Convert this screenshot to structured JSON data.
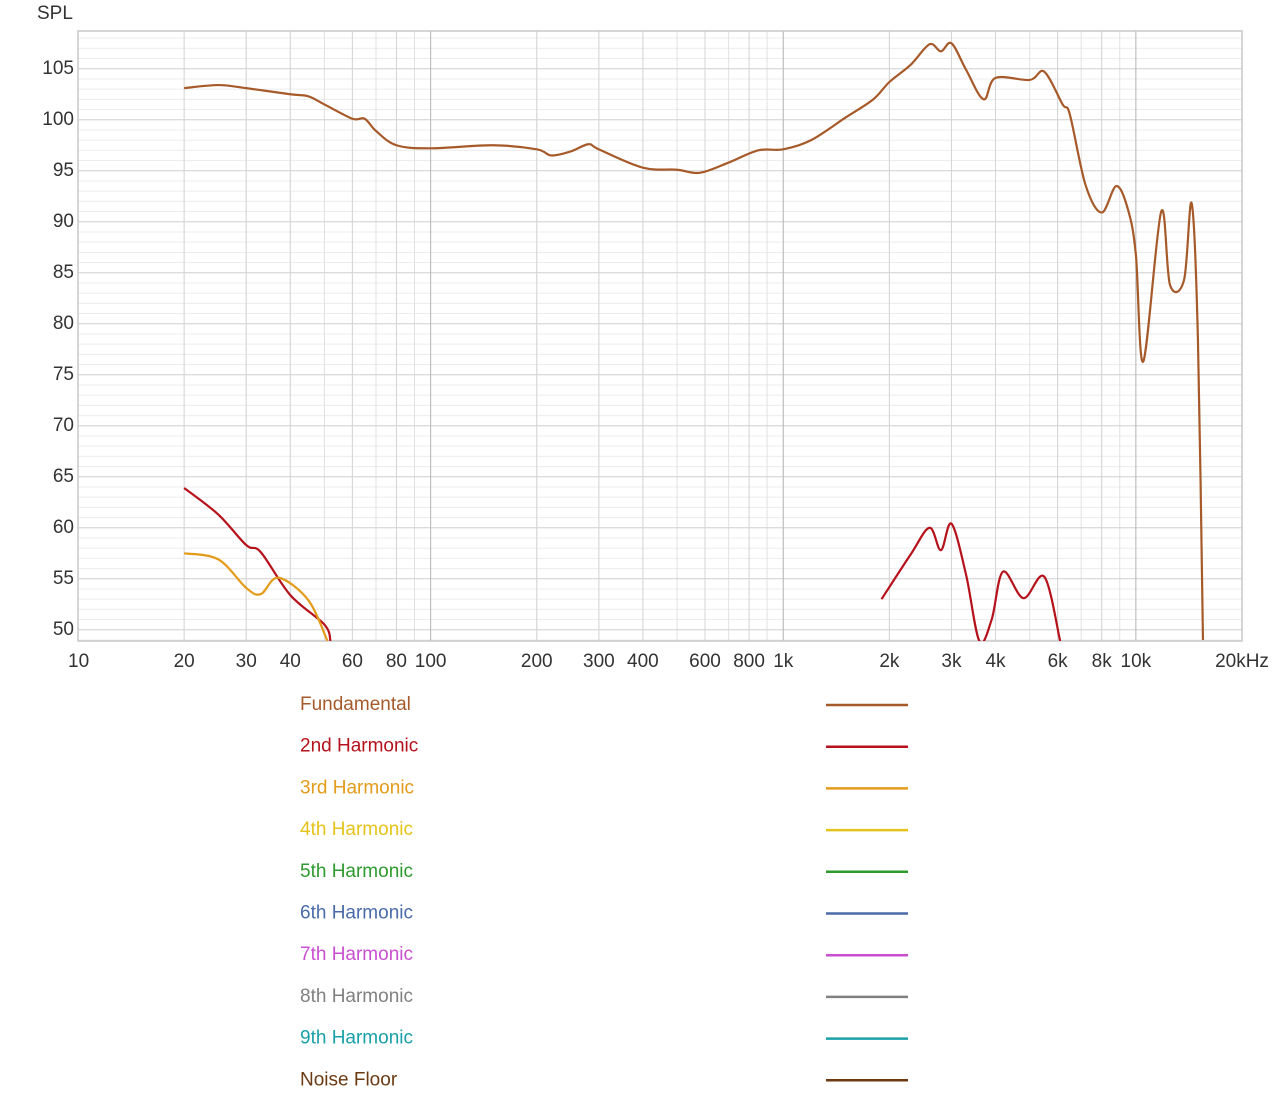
{
  "chart_data": {
    "type": "line",
    "y_label": "SPL",
    "xscale": "log",
    "grid": true,
    "xlim": [
      10,
      20000
    ],
    "ylim": [
      48.9,
      108.7
    ],
    "xticks": [
      10,
      20,
      30,
      40,
      60,
      80,
      100,
      200,
      300,
      400,
      600,
      800,
      {
        "value": 1000,
        "label": "1k"
      },
      {
        "value": 2000,
        "label": "2k"
      },
      {
        "value": 3000,
        "label": "3k"
      },
      {
        "value": 4000,
        "label": "4k"
      },
      {
        "value": 6000,
        "label": "6k"
      },
      {
        "value": 8000,
        "label": "8k"
      },
      {
        "value": 10000,
        "label": "10k"
      },
      {
        "value": 20000,
        "label": "20kHz"
      }
    ],
    "yticks": [
      50,
      55,
      60,
      65,
      70,
      75,
      80,
      85,
      90,
      95,
      100,
      105
    ],
    "legend": "bottom",
    "series": [
      {
        "name": "Fundamental",
        "color": "#a65a2a",
        "x": [
          20,
          25,
          30,
          40,
          45,
          50,
          60,
          65,
          70,
          80,
          100,
          150,
          200,
          220,
          250,
          280,
          300,
          400,
          500,
          580,
          700,
          850,
          1000,
          1200,
          1500,
          1800,
          2000,
          2300,
          2600,
          2800,
          3000,
          3300,
          3700,
          4000,
          5000,
          5500,
          6200,
          6500,
          7200,
          8000,
          8800,
          9500,
          10000,
          10500,
          11800,
          12500,
          13700,
          14400,
          15000,
          15500
        ],
        "values": [
          103.1,
          103.4,
          103.1,
          102.5,
          102.3,
          101.5,
          100.1,
          100.1,
          98.9,
          97.5,
          97.2,
          97.5,
          97.1,
          96.5,
          96.9,
          97.6,
          97.1,
          95.3,
          95.1,
          94.8,
          95.8,
          97.0,
          97.1,
          98.0,
          100.2,
          102,
          103.7,
          105.4,
          107.4,
          106.7,
          107.5,
          104.9,
          102,
          104.1,
          103.9,
          104.7,
          101.5,
          100.5,
          93.6,
          90.9,
          93.5,
          91.2,
          86.8,
          76.3,
          91.0,
          83.8,
          84.3,
          91.8,
          78.4,
          49.0
        ]
      },
      {
        "name": "2nd Harmonic",
        "color": "#b5121b",
        "x": [
          20,
          25,
          30,
          33,
          40,
          50,
          52,
          1800,
          1900,
          2300,
          2600,
          2800,
          3000,
          3300,
          3600,
          3900,
          4200,
          4800,
          5500,
          6100
        ],
        "values": [
          63.9,
          61.3,
          58.3,
          57.6,
          53.4,
          50.5,
          48.9,
          null,
          53,
          57.4,
          60,
          57.8,
          60.4,
          55.4,
          48.9,
          51,
          55.7,
          53.1,
          55.2,
          48.9
        ]
      },
      {
        "name": "3rd Harmonic",
        "color": "#e39b1a",
        "x": [
          20,
          25,
          30,
          33,
          37,
          45,
          51
        ],
        "values": [
          57.5,
          56.9,
          54.1,
          53.5,
          55.1,
          52.9,
          48.9
        ]
      },
      {
        "name": "4th Harmonic",
        "color": "#e6c31a"
      },
      {
        "name": "5th Harmonic",
        "color": "#2e9a2e"
      },
      {
        "name": "6th Harmonic",
        "color": "#4a6aaa"
      },
      {
        "name": "7th Harmonic",
        "color": "#c84fd0"
      },
      {
        "name": "8th Harmonic",
        "color": "#808080"
      },
      {
        "name": "9th Harmonic",
        "color": "#1aa0a8"
      },
      {
        "name": "Noise Floor",
        "color": "#6b3a12"
      }
    ]
  }
}
